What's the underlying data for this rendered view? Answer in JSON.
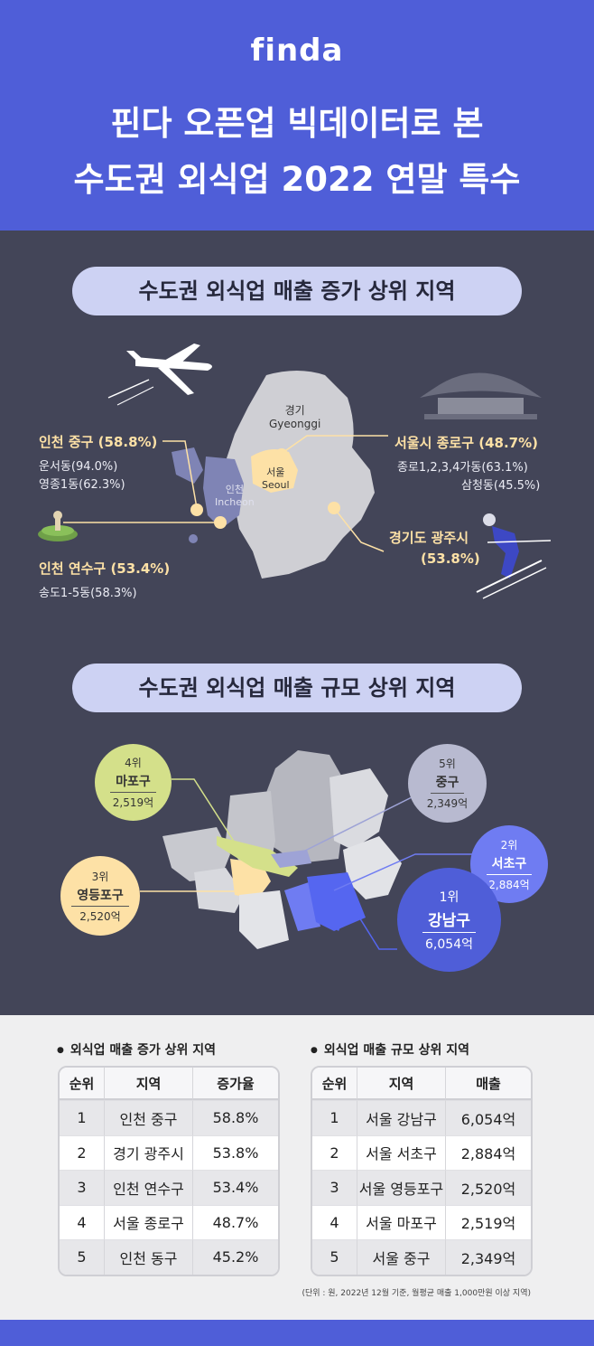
{
  "header": {
    "logo": "finda",
    "title_line1": "핀다 오픈업 빅데이터로 본",
    "title_line2": "수도권 외식업 2022 연말 특수"
  },
  "section1": {
    "title": "수도권 외식업 매출 증가 상위 지역",
    "gyeonggi_kr": "경기",
    "gyeonggi_en": "Gyeonggi",
    "seoul_kr": "서울",
    "seoul_en": "Seoul",
    "incheon_kr": "인천",
    "incheon_en": "Incheon",
    "incheon_junggu": {
      "title": "인천 중구 (58.8%)",
      "sub1": "운서동(94.0%)",
      "sub2": "영종1동(62.3%)"
    },
    "incheon_yeonsu": {
      "title": "인천 연수구 (53.4%)",
      "sub1": "송도1-5동(58.3%)"
    },
    "seoul_jongno": {
      "title": "서울시 종로구 (48.7%)",
      "sub1": "종로1,2,3,4가동(63.1%)",
      "sub2": "삼청동(45.5%)"
    },
    "gwangju": {
      "title_line1": "경기도 광주시",
      "title_line2": "(53.8%)"
    }
  },
  "section2": {
    "title": "수도권 외식업 매출 규모 상위 지역",
    "rank1": {
      "rank": "1위",
      "name": "강남구",
      "value": "6,054억"
    },
    "rank2": {
      "rank": "2위",
      "name": "서초구",
      "value": "2,884억"
    },
    "rank3": {
      "rank": "3위",
      "name": "영등포구",
      "value": "2,520억"
    },
    "rank4": {
      "rank": "4위",
      "name": "마포구",
      "value": "2,519억"
    },
    "rank5": {
      "rank": "5위",
      "name": "중구",
      "value": "2,349억"
    }
  },
  "table_growth": {
    "title": "외식업 매출 증가 상위 지역",
    "headers": [
      "순위",
      "지역",
      "증가율"
    ],
    "rows": [
      [
        "1",
        "인천 중구",
        "58.8%"
      ],
      [
        "2",
        "경기 광주시",
        "53.8%"
      ],
      [
        "3",
        "인천 연수구",
        "53.4%"
      ],
      [
        "4",
        "서울 종로구",
        "48.7%"
      ],
      [
        "5",
        "인천 동구",
        "45.2%"
      ]
    ]
  },
  "table_size": {
    "title": "외식업 매출 규모 상위 지역",
    "headers": [
      "순위",
      "지역",
      "매출"
    ],
    "rows": [
      [
        "1",
        "서울 강남구",
        "6,054억"
      ],
      [
        "2",
        "서울 서초구",
        "2,884억"
      ],
      [
        "3",
        "서울 영등포구",
        "2,520억"
      ],
      [
        "4",
        "서울 마포구",
        "2,519억"
      ],
      [
        "5",
        "서울 중구",
        "2,349억"
      ]
    ]
  },
  "note": "(단위 : 원, 2022년 12월 기준, 월평균 매출 1,000만원 이상 지역)",
  "colors": {
    "brand": "#4f5ed8",
    "dark_bg": "#434558",
    "accent_yellow": "#fde1a6",
    "pill": "#cdd2f3"
  }
}
